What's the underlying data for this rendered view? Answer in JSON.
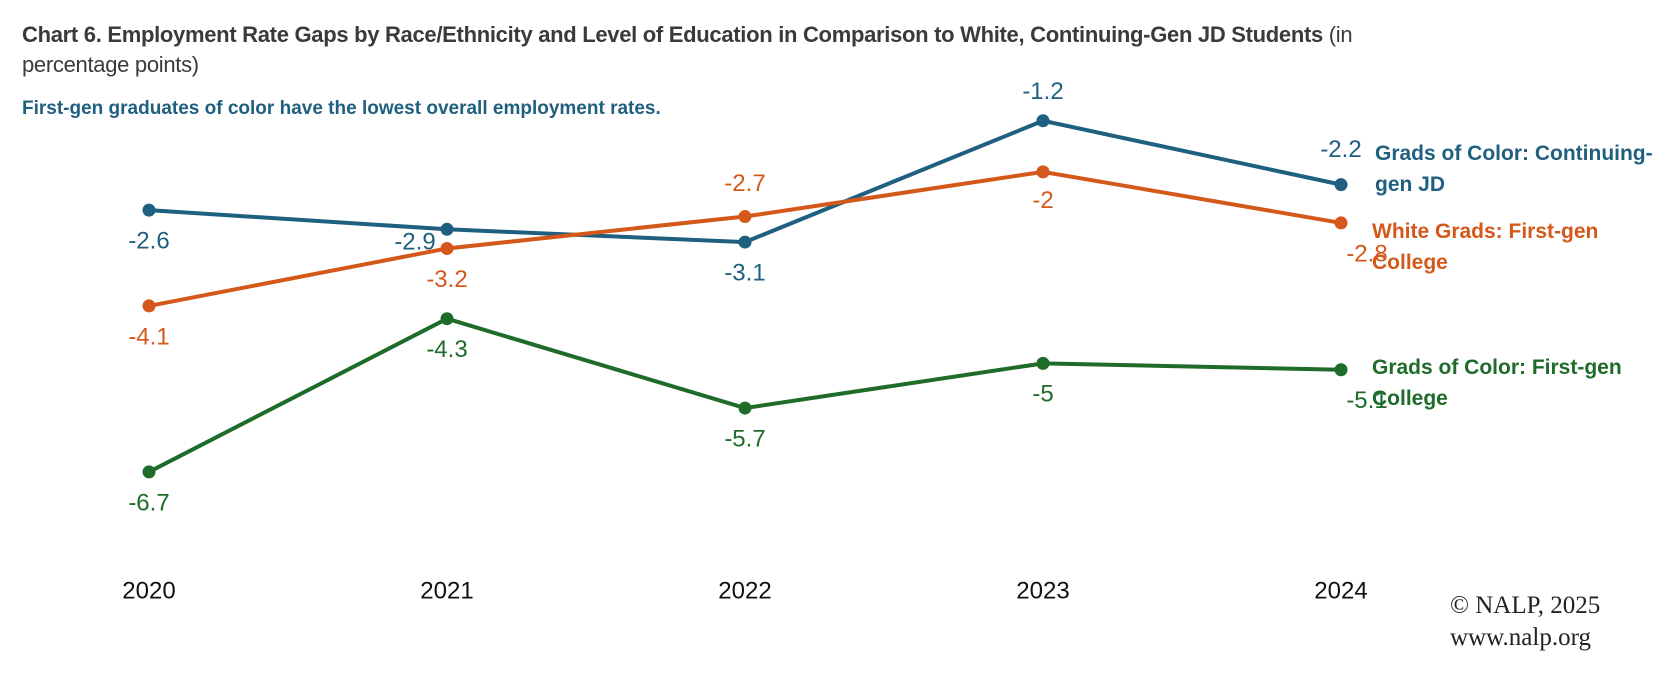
{
  "chart_data": {
    "type": "line",
    "title": "Chart 6. Employment Rate Gaps by Race/Ethnicity and Level of Education in Comparison to White, Continuing-Gen JD Students",
    "title_unit": "(in percentage points)",
    "subtitle": "First-gen graduates of color have the lowest overall employment rates.",
    "categories": [
      "2020",
      "2021",
      "2022",
      "2023",
      "2024"
    ],
    "series": [
      {
        "name": "Grads of Color: Continuing-gen JD",
        "color": "#1f5f7f",
        "values": [
          -2.6,
          -2.9,
          -3.1,
          -1.2,
          -2.2
        ]
      },
      {
        "name": "White Grads: First-gen College",
        "color": "#d4581a",
        "values": [
          -4.1,
          -3.2,
          -2.7,
          -2.0,
          -2.8
        ]
      },
      {
        "name": "Grads of Color: First-gen College",
        "color": "#1e6b2a",
        "values": [
          -6.7,
          -4.3,
          -5.7,
          -5.0,
          -5.1
        ]
      }
    ],
    "ylim": [
      -7.5,
      -1
    ],
    "credit": [
      "© NALP, 2025",
      "www.nalp.org"
    ]
  }
}
